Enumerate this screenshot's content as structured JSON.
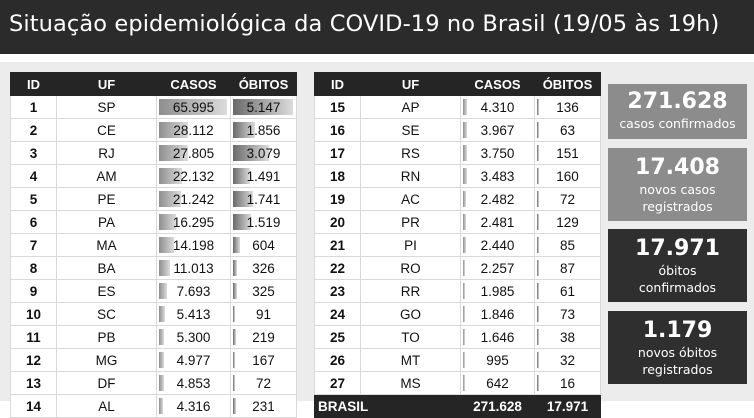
{
  "title": "Situação epidemiológica da COVID-19 no Brasil (19/05 às 19h)",
  "columns": [
    "ID",
    "UF",
    "CASOS",
    "ÓBITOS"
  ],
  "max_casos": 65995,
  "max_obitos": 5147,
  "table_left": [
    {
      "id": "1",
      "uf": "SP",
      "casos": "65.995",
      "obitos": "5.147",
      "casos_n": 65995,
      "obitos_n": 5147
    },
    {
      "id": "2",
      "uf": "CE",
      "casos": "28.112",
      "obitos": "1.856",
      "casos_n": 28112,
      "obitos_n": 1856
    },
    {
      "id": "3",
      "uf": "RJ",
      "casos": "27.805",
      "obitos": "3.079",
      "casos_n": 27805,
      "obitos_n": 3079
    },
    {
      "id": "4",
      "uf": "AM",
      "casos": "22.132",
      "obitos": "1.491",
      "casos_n": 22132,
      "obitos_n": 1491
    },
    {
      "id": "5",
      "uf": "PE",
      "casos": "21.242",
      "obitos": "1.741",
      "casos_n": 21242,
      "obitos_n": 1741
    },
    {
      "id": "6",
      "uf": "PA",
      "casos": "16.295",
      "obitos": "1.519",
      "casos_n": 16295,
      "obitos_n": 1519
    },
    {
      "id": "7",
      "uf": "MA",
      "casos": "14.198",
      "obitos": "604",
      "casos_n": 14198,
      "obitos_n": 604
    },
    {
      "id": "8",
      "uf": "BA",
      "casos": "11.013",
      "obitos": "326",
      "casos_n": 11013,
      "obitos_n": 326
    },
    {
      "id": "9",
      "uf": "ES",
      "casos": "7.693",
      "obitos": "325",
      "casos_n": 7693,
      "obitos_n": 325
    },
    {
      "id": "10",
      "uf": "SC",
      "casos": "5.413",
      "obitos": "91",
      "casos_n": 5413,
      "obitos_n": 91
    },
    {
      "id": "11",
      "uf": "PB",
      "casos": "5.300",
      "obitos": "219",
      "casos_n": 5300,
      "obitos_n": 219
    },
    {
      "id": "12",
      "uf": "MG",
      "casos": "4.977",
      "obitos": "167",
      "casos_n": 4977,
      "obitos_n": 167
    },
    {
      "id": "13",
      "uf": "DF",
      "casos": "4.853",
      "obitos": "72",
      "casos_n": 4853,
      "obitos_n": 72
    },
    {
      "id": "14",
      "uf": "AL",
      "casos": "4.316",
      "obitos": "231",
      "casos_n": 4316,
      "obitos_n": 231
    }
  ],
  "table_right": [
    {
      "id": "15",
      "uf": "AP",
      "casos": "4.310",
      "obitos": "136",
      "casos_n": 4310,
      "obitos_n": 136
    },
    {
      "id": "16",
      "uf": "SE",
      "casos": "3.967",
      "obitos": "63",
      "casos_n": 3967,
      "obitos_n": 63
    },
    {
      "id": "17",
      "uf": "RS",
      "casos": "3.750",
      "obitos": "151",
      "casos_n": 3750,
      "obitos_n": 151
    },
    {
      "id": "18",
      "uf": "RN",
      "casos": "3.483",
      "obitos": "160",
      "casos_n": 3483,
      "obitos_n": 160
    },
    {
      "id": "19",
      "uf": "AC",
      "casos": "2.482",
      "obitos": "72",
      "casos_n": 2482,
      "obitos_n": 72
    },
    {
      "id": "20",
      "uf": "PR",
      "casos": "2.481",
      "obitos": "129",
      "casos_n": 2481,
      "obitos_n": 129
    },
    {
      "id": "21",
      "uf": "PI",
      "casos": "2.440",
      "obitos": "85",
      "casos_n": 2440,
      "obitos_n": 85
    },
    {
      "id": "22",
      "uf": "RO",
      "casos": "2.257",
      "obitos": "87",
      "casos_n": 2257,
      "obitos_n": 87
    },
    {
      "id": "23",
      "uf": "RR",
      "casos": "1.985",
      "obitos": "61",
      "casos_n": 1985,
      "obitos_n": 61
    },
    {
      "id": "24",
      "uf": "GO",
      "casos": "1.846",
      "obitos": "73",
      "casos_n": 1846,
      "obitos_n": 73
    },
    {
      "id": "25",
      "uf": "TO",
      "casos": "1.646",
      "obitos": "38",
      "casos_n": 1646,
      "obitos_n": 38
    },
    {
      "id": "26",
      "uf": "MT",
      "casos": "995",
      "obitos": "32",
      "casos_n": 995,
      "obitos_n": 32
    },
    {
      "id": "27",
      "uf": "MS",
      "casos": "642",
      "obitos": "16",
      "casos_n": 642,
      "obitos_n": 16
    }
  ],
  "total_row": {
    "label": "BRASIL",
    "casos": "271.628",
    "obitos": "17.971"
  },
  "summary": [
    {
      "value": "271.628",
      "line1": "casos confirmados",
      "line2": "",
      "color": "#8c8c8c"
    },
    {
      "value": "17.408",
      "line1": "novos casos",
      "line2": "registrados",
      "color": "#8c8c8c"
    },
    {
      "value": "17.971",
      "line1": "óbitos",
      "line2": "confirmados",
      "color": "#2f2f2f"
    },
    {
      "value": "1.179",
      "line1": "novos óbitos",
      "line2": "registrados",
      "color": "#2f2f2f"
    }
  ]
}
